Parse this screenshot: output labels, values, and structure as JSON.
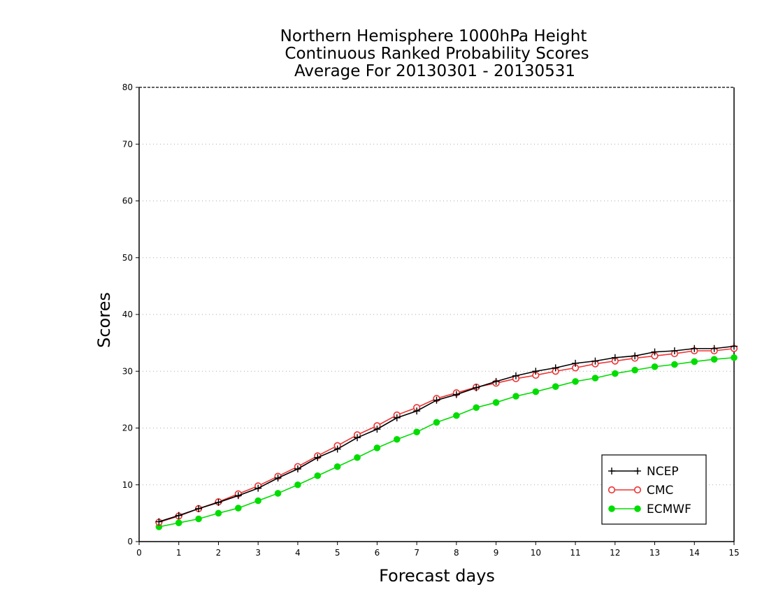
{
  "chart_data": {
    "type": "line",
    "title_lines": [
      "Northern Hemisphere 1000hPa Height",
      "Continuous Ranked Probability Scores",
      "Average For 20130301 - 20130531"
    ],
    "xlabel": "Forecast days",
    "ylabel": "Scores",
    "xlim": [
      0,
      15
    ],
    "ylim": [
      0,
      80
    ],
    "xticks": [
      0,
      1,
      2,
      3,
      4,
      5,
      6,
      7,
      8,
      9,
      10,
      11,
      12,
      13,
      14,
      15
    ],
    "yticks": [
      0,
      10,
      20,
      30,
      40,
      50,
      60,
      70,
      80
    ],
    "grid": "horizontal dotted",
    "legend_position": "bottom-right",
    "x": [
      0.5,
      1,
      1.5,
      2,
      2.5,
      3,
      3.5,
      4,
      4.5,
      5,
      5.5,
      6,
      6.5,
      7,
      7.5,
      8,
      8.5,
      9,
      9.5,
      10,
      10.5,
      11,
      11.5,
      12,
      12.5,
      13,
      13.5,
      14,
      14.5,
      15
    ],
    "series": [
      {
        "name": "NCEP",
        "color": "#000000",
        "marker": "plus",
        "values": [
          3.5,
          4.6,
          5.8,
          6.9,
          8.1,
          9.4,
          11.2,
          12.8,
          14.8,
          16.3,
          18.3,
          19.8,
          21.8,
          23.0,
          24.9,
          25.9,
          27.1,
          28.2,
          29.2,
          30.0,
          30.6,
          31.4,
          31.8,
          32.4,
          32.7,
          33.4,
          33.6,
          34.0,
          34.0,
          34.4
        ]
      },
      {
        "name": "CMC",
        "color": "#ee3333",
        "marker": "open-circle",
        "values": [
          3.4,
          4.5,
          5.8,
          7.0,
          8.4,
          9.8,
          11.5,
          13.2,
          15.1,
          16.9,
          18.8,
          20.4,
          22.3,
          23.6,
          25.2,
          26.2,
          27.2,
          27.9,
          28.7,
          29.3,
          30.0,
          30.6,
          31.3,
          31.8,
          32.3,
          32.7,
          33.1,
          33.6,
          33.6,
          34.0
        ]
      },
      {
        "name": "ECMWF",
        "color": "#00dd00",
        "marker": "filled-circle",
        "values": [
          2.6,
          3.3,
          4.0,
          5.0,
          5.9,
          7.2,
          8.5,
          10.0,
          11.6,
          13.2,
          14.8,
          16.5,
          18.0,
          19.3,
          21.0,
          22.2,
          23.6,
          24.5,
          25.6,
          26.4,
          27.3,
          28.2,
          28.8,
          29.6,
          30.2,
          30.8,
          31.2,
          31.7,
          32.1,
          32.4
        ]
      }
    ]
  }
}
